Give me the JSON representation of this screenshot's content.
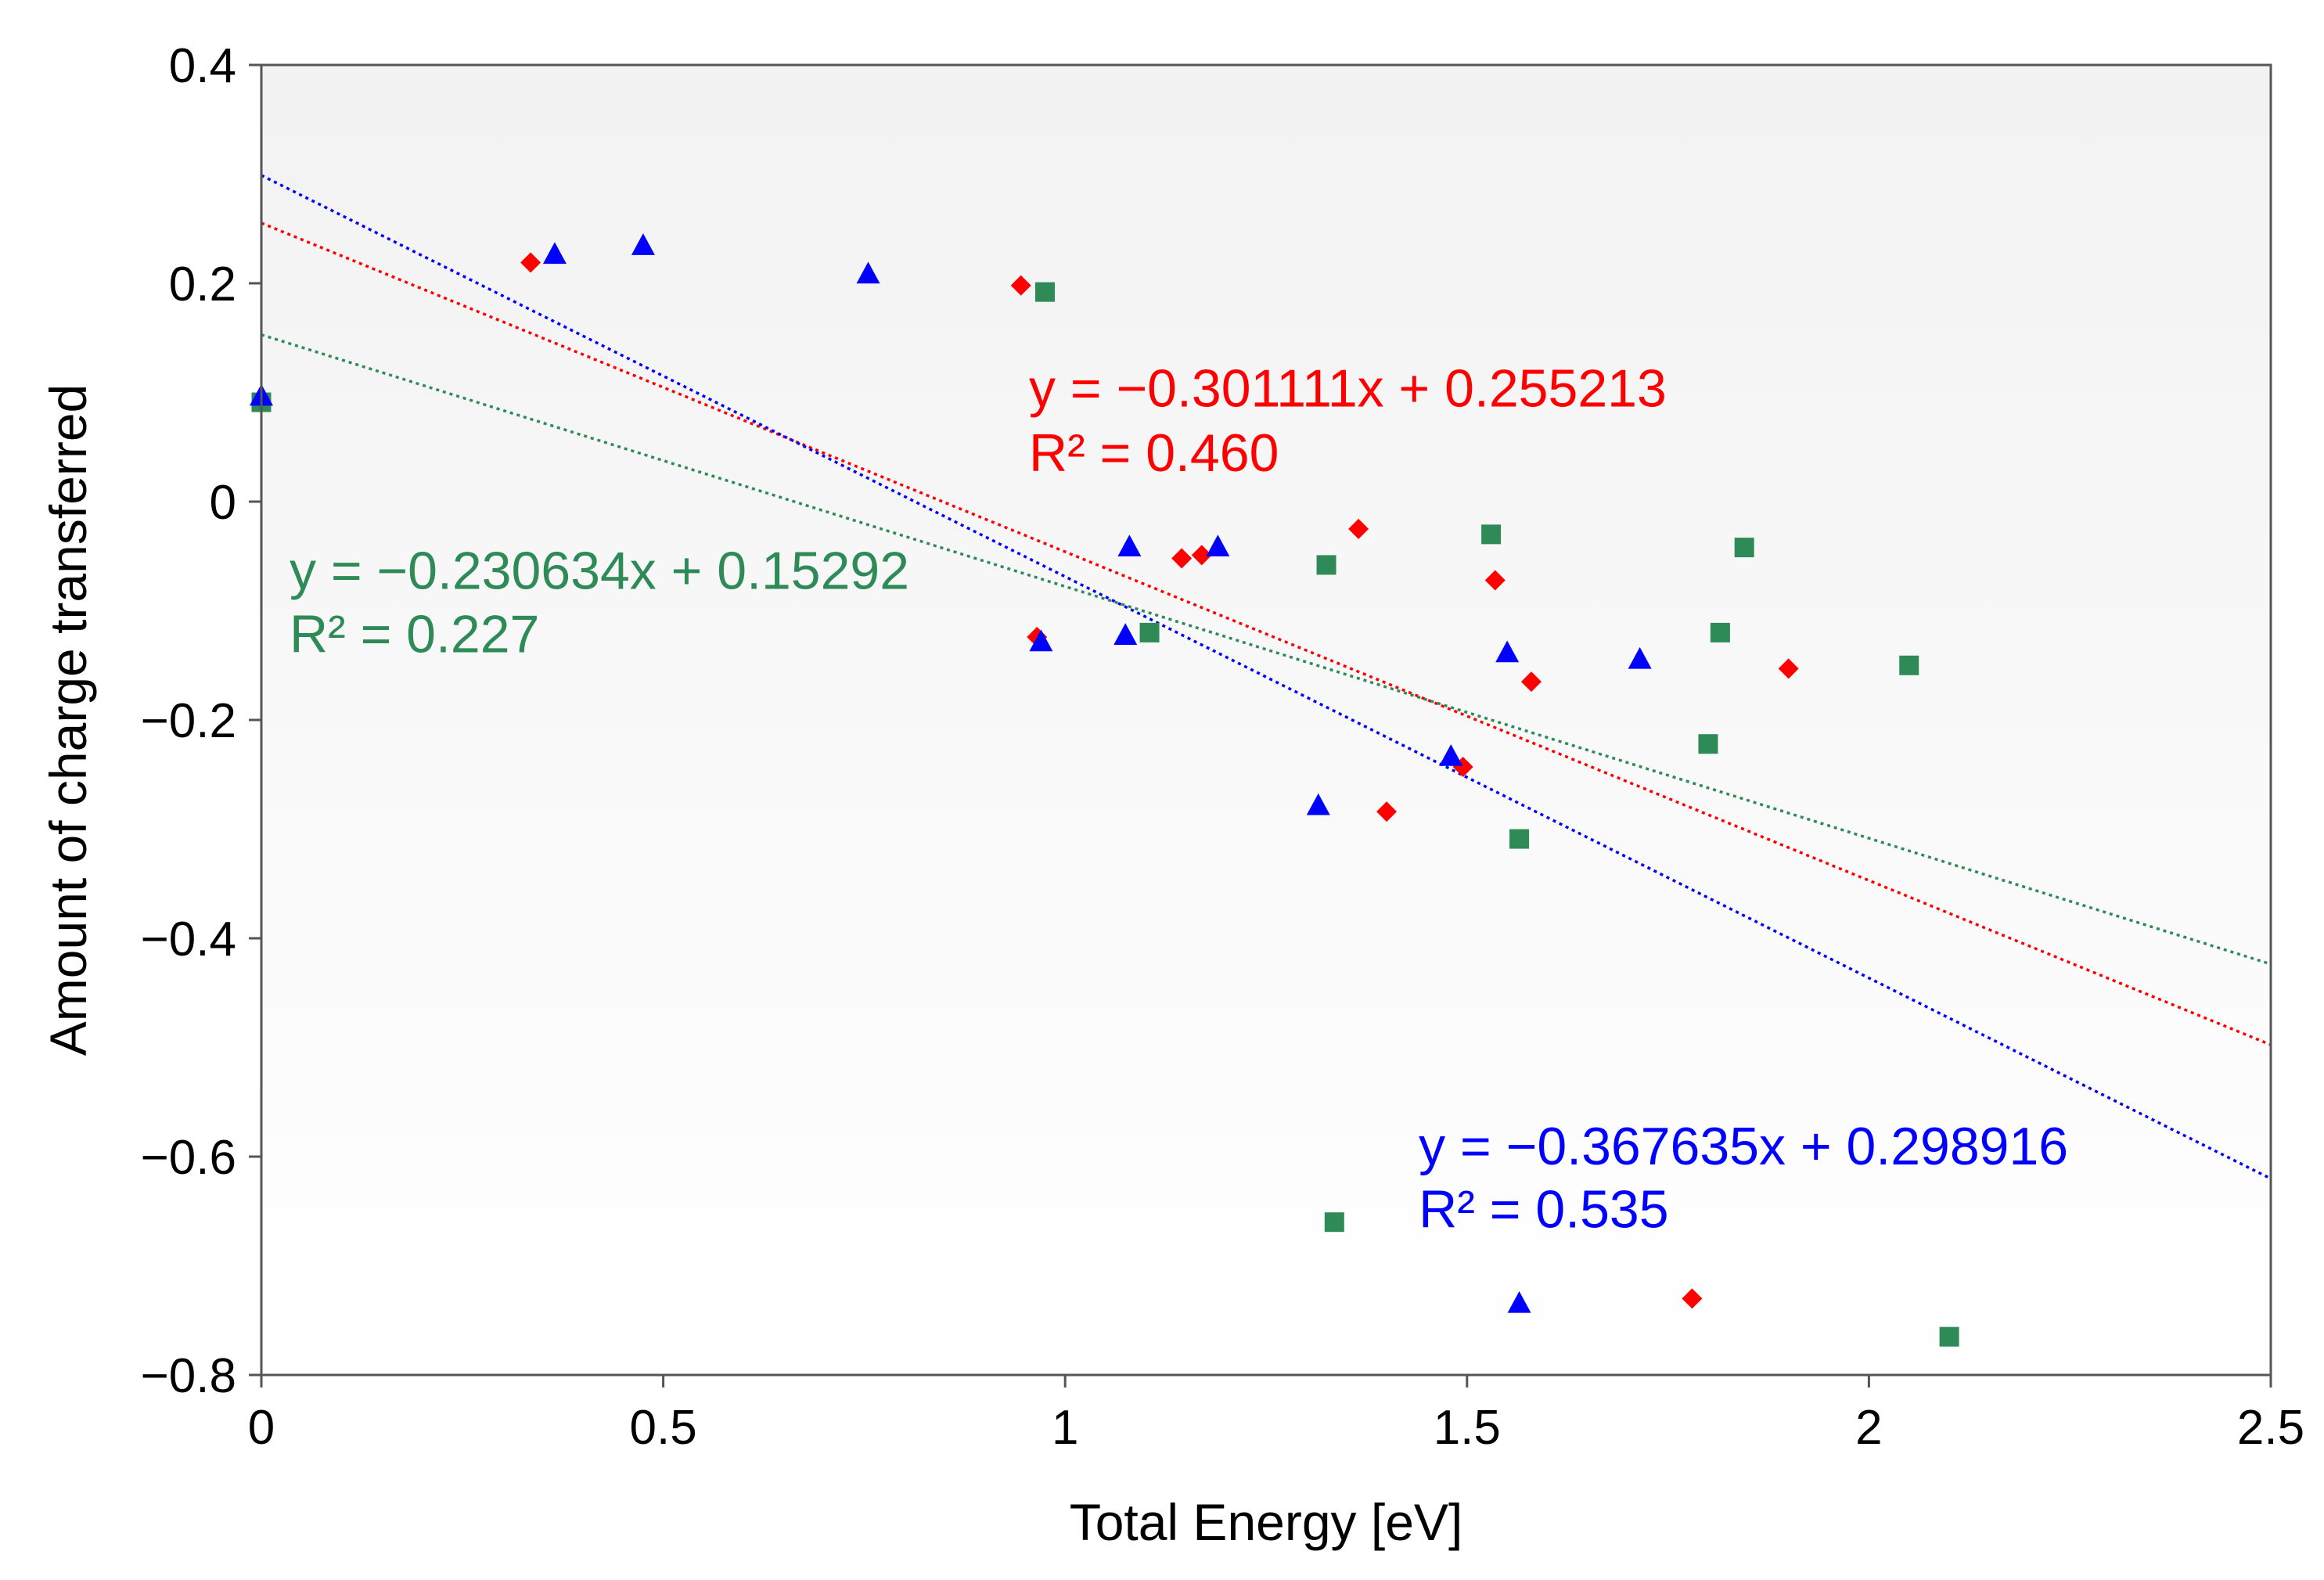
{
  "chart_data": {
    "type": "scatter",
    "title": "",
    "xlabel": "Total Energy [eV]",
    "ylabel": "Amount of charge transferred",
    "xlim": [
      0,
      2.5
    ],
    "ylim": [
      -0.8,
      0.4
    ],
    "xticks": [
      0,
      0.5,
      1,
      1.5,
      2,
      2.5
    ],
    "xtick_labels": [
      "0",
      "0.5",
      "1",
      "1.5",
      "2",
      "2.5"
    ],
    "yticks": [
      -0.8,
      -0.6,
      -0.4,
      -0.2,
      0,
      0.2,
      0.4
    ],
    "ytick_labels": [
      "−0.8",
      "−0.6",
      "−0.4",
      "−0.2",
      "0",
      "0.2",
      "0.4"
    ],
    "grid": false,
    "series": [
      {
        "name": "red",
        "marker": "diamond",
        "color": "#ff0000",
        "points": [
          [
            0.335,
            0.219
          ],
          [
            0.945,
            0.198
          ],
          [
            0.965,
            -0.124
          ],
          [
            1.145,
            -0.052
          ],
          [
            1.17,
            -0.049
          ],
          [
            1.365,
            -0.025
          ],
          [
            1.4,
            -0.284
          ],
          [
            1.495,
            -0.243
          ],
          [
            1.535,
            -0.072
          ],
          [
            1.58,
            -0.165
          ],
          [
            1.78,
            -0.73
          ],
          [
            1.9,
            -0.153
          ]
        ],
        "trendline": {
          "slope": -0.301111,
          "intercept": 0.255213
        },
        "equation": "y = −0.301111x + 0.255213",
        "r2": "R² = 0.460"
      },
      {
        "name": "green",
        "marker": "square",
        "color": "#2e8b57",
        "points": [
          [
            0.0,
            0.091
          ],
          [
            0.975,
            0.192
          ],
          [
            1.105,
            -0.12
          ],
          [
            1.325,
            -0.058
          ],
          [
            1.335,
            -0.66
          ],
          [
            1.53,
            -0.03
          ],
          [
            1.565,
            -0.309
          ],
          [
            1.8,
            -0.222
          ],
          [
            1.815,
            -0.12
          ],
          [
            1.845,
            -0.042
          ],
          [
            2.05,
            -0.15
          ],
          [
            2.1,
            -0.765
          ]
        ],
        "trendline": {
          "slope": -0.230634,
          "intercept": 0.15292
        },
        "equation": "y = −0.230634x + 0.15292",
        "r2": "R² = 0.227"
      },
      {
        "name": "blue",
        "marker": "triangle",
        "color": "#0000ff",
        "points": [
          [
            0.0,
            0.097
          ],
          [
            0.365,
            0.227
          ],
          [
            0.475,
            0.235
          ],
          [
            0.755,
            0.209
          ],
          [
            0.97,
            -0.128
          ],
          [
            1.075,
            -0.122
          ],
          [
            1.08,
            -0.041
          ],
          [
            1.19,
            -0.041
          ],
          [
            1.315,
            -0.278
          ],
          [
            1.48,
            -0.233
          ],
          [
            1.55,
            -0.138
          ],
          [
            1.565,
            -0.734
          ],
          [
            1.715,
            -0.144
          ]
        ],
        "trendline": {
          "slope": -0.367635,
          "intercept": 0.298916
        },
        "equation": "y = −0.367635x + 0.298916",
        "r2": "R² = 0.535"
      }
    ],
    "annotations": [
      {
        "series": "red",
        "text": "y = −0.301111x + 0.255213",
        "x": 0.955,
        "y": 0.087
      },
      {
        "series": "red",
        "text": "R² = 0.460",
        "x": 0.955,
        "y": 0.028
      },
      {
        "series": "green",
        "text": "y = −0.230634x + 0.15292",
        "x": 0.035,
        "y": -0.08
      },
      {
        "series": "green",
        "text": "R² = 0.227",
        "x": 0.035,
        "y": -0.138
      },
      {
        "series": "blue",
        "text": "y = −0.367635x + 0.298916",
        "x": 1.44,
        "y": -0.607
      },
      {
        "series": "blue",
        "text": "R² = 0.535",
        "x": 1.44,
        "y": -0.665
      }
    ]
  }
}
